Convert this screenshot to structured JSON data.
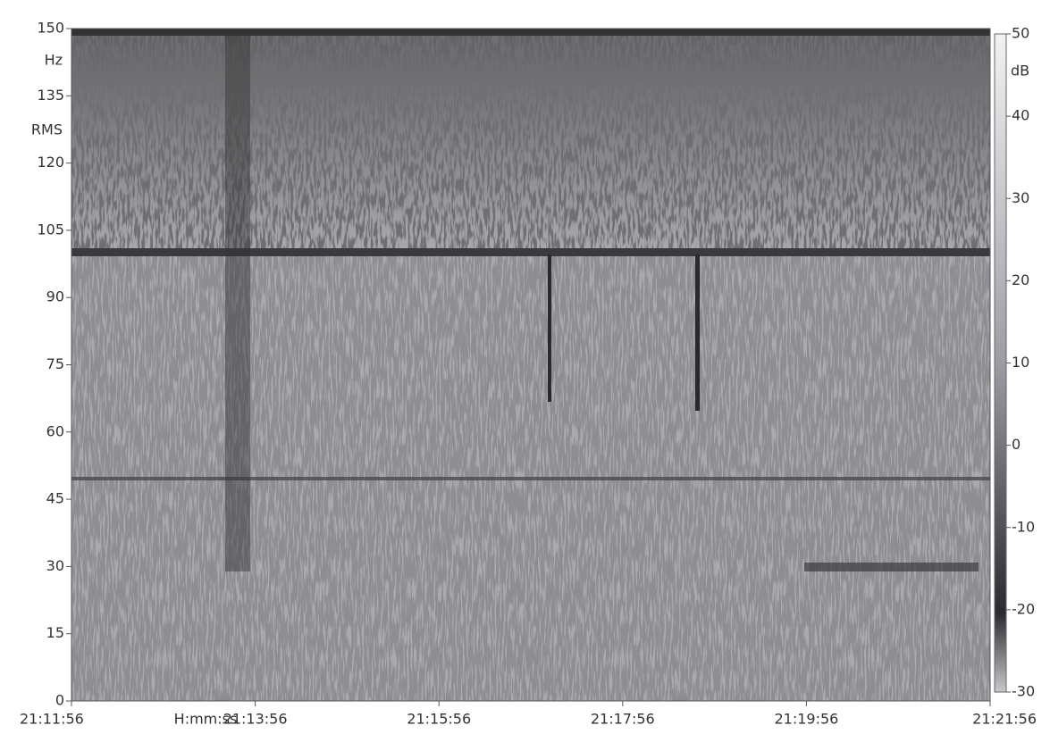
{
  "chart_data": {
    "type": "spectrogram",
    "ylabel": [
      "Hz",
      "RMS"
    ],
    "ylim": [
      0,
      150
    ],
    "yticks": [
      0,
      15,
      30,
      45,
      60,
      75,
      90,
      105,
      120,
      135,
      150
    ],
    "xlabel": "H:mm:ss",
    "xticks": [
      "21:11:56",
      "21:13:56",
      "21:15:56",
      "21:17:56",
      "21:19:56",
      "21:21:56"
    ],
    "colorbar": {
      "label": "dB",
      "lim": [
        -30,
        50
      ],
      "ticks": [
        -30,
        -20,
        -10,
        0,
        10,
        20,
        30,
        40,
        50
      ]
    }
  }
}
